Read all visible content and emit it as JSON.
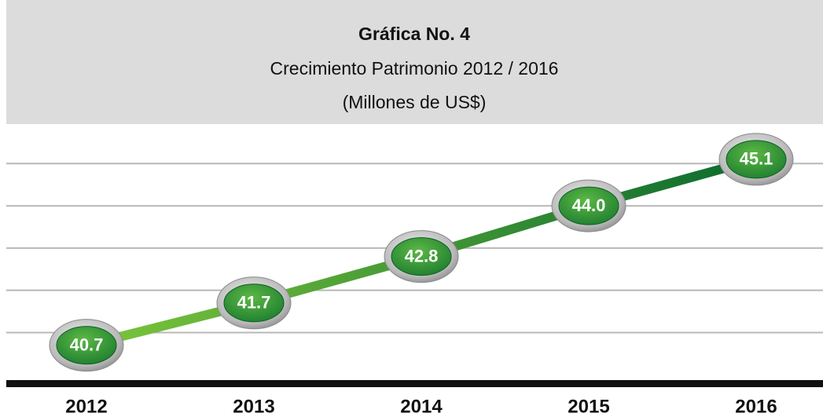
{
  "chart_data": {
    "type": "line",
    "title": "Gráfica No. 4",
    "subtitle": [
      "Crecimiento Patrimonio 2012 / 2016",
      "(Millones de US$)"
    ],
    "categories": [
      "2012",
      "2013",
      "2014",
      "2015",
      "2016"
    ],
    "series": [
      {
        "color": "#2e9a3a",
        "values": [
          40.7,
          41.7,
          42.8,
          44.0,
          45.1
        ],
        "value_labels": [
          "40.7",
          "41.7",
          "42.8",
          "44.0",
          "45.1"
        ]
      }
    ],
    "ylim": [
      39.8,
      45.6
    ],
    "yticks": [
      41,
      42,
      43,
      44,
      45
    ],
    "grid": true
  }
}
